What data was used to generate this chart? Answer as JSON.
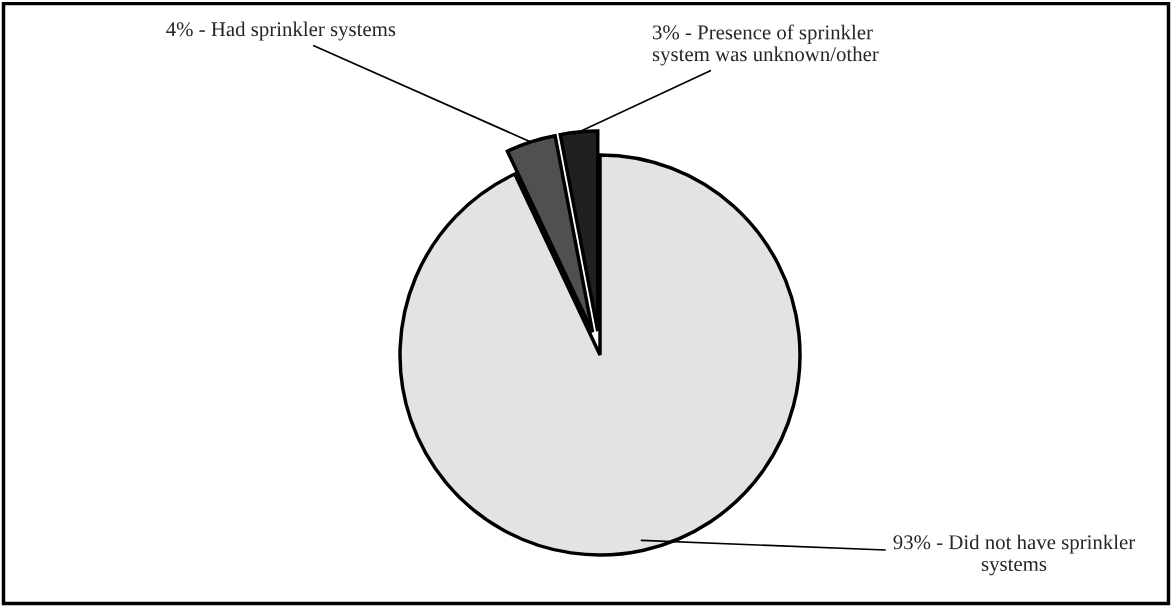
{
  "chart_data": {
    "type": "pie",
    "categories": [
      "93% - Did not have sprinkler\nsystems",
      "4% - Had sprinkler systems",
      "3% - Presence of sprinkler\nsystem was unknown/other"
    ],
    "values": [
      93,
      4,
      3
    ],
    "colors": [
      "#e3e3e3",
      "#505050",
      "#202020"
    ]
  }
}
